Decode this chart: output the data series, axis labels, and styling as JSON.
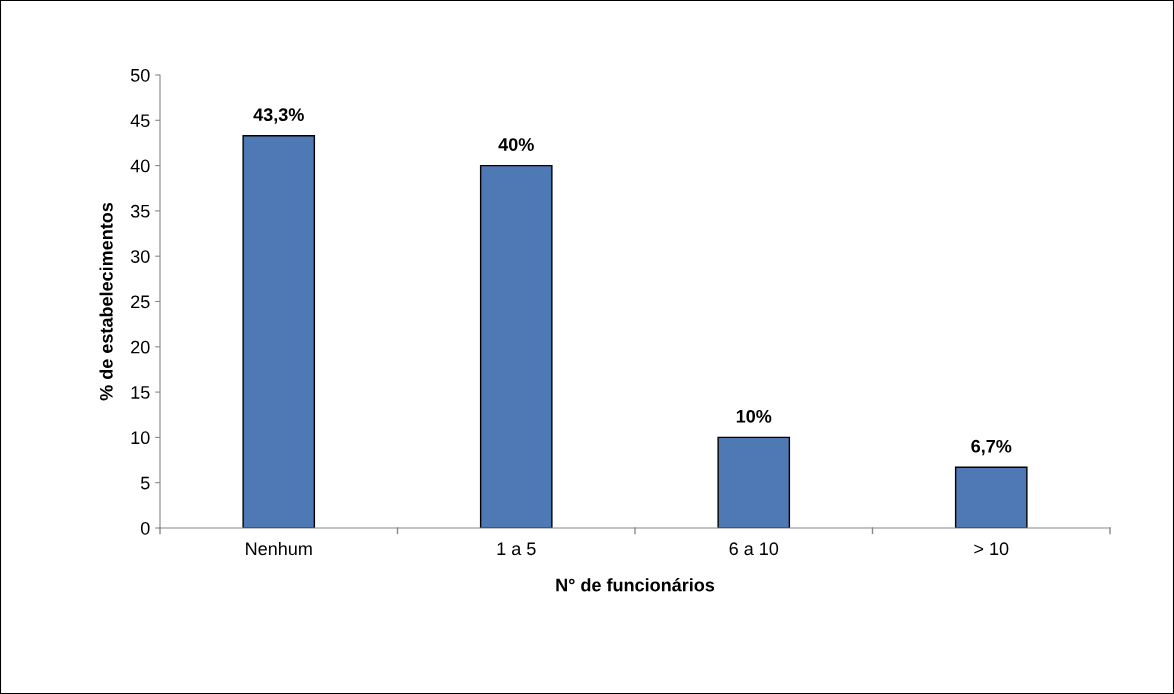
{
  "chart_data": {
    "type": "bar",
    "xlabel": "N° de funcionários",
    "ylabel": "% de estabelecimentos",
    "categories": [
      "Nenhum",
      "1 a 5",
      "6 a 10",
      "> 10"
    ],
    "values": [
      43.3,
      40,
      10,
      6.7
    ],
    "value_labels": [
      "43,3%",
      "40%",
      "10%",
      "6,7%"
    ],
    "color": "#4f79b5",
    "ylim": [
      0,
      50
    ],
    "yticks": [
      0,
      5,
      10,
      15,
      20,
      25,
      30,
      35,
      40,
      45,
      50
    ],
    "grid": false,
    "legend": false
  }
}
